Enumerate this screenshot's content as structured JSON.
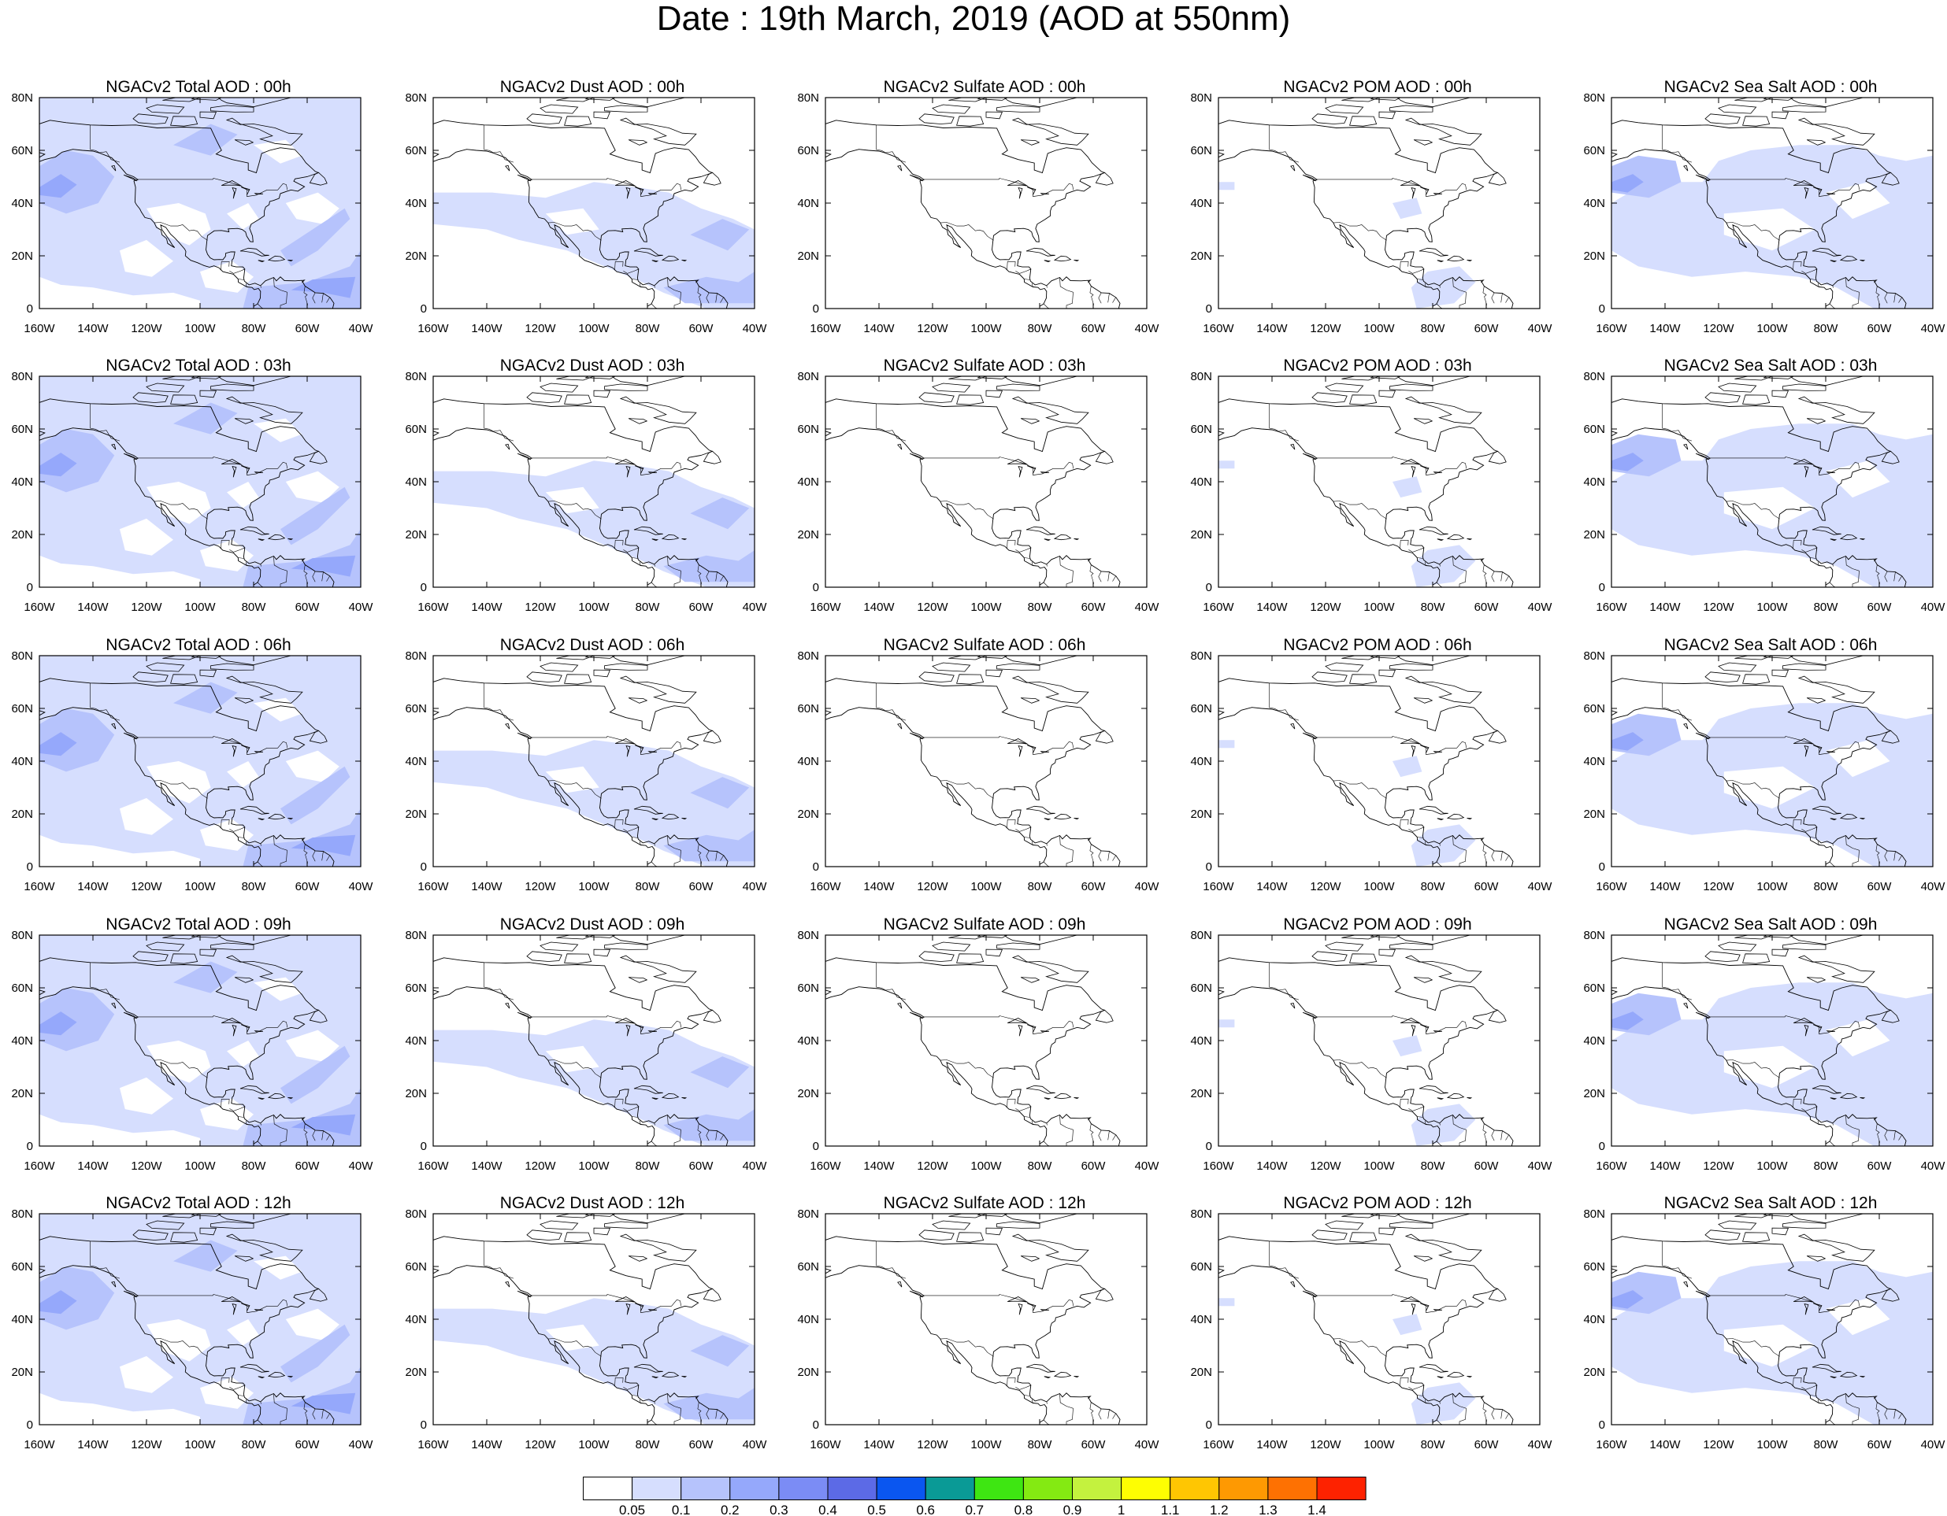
{
  "title": "Date : 19th March, 2019 (AOD at 550nm)",
  "x_tick_labels": [
    "160W",
    "140W",
    "120W",
    "100W",
    "80W",
    "60W",
    "40W"
  ],
  "y_tick_labels": [
    "0",
    "20N",
    "40N",
    "60N",
    "80N"
  ],
  "axes": {
    "lon_range": [
      -160,
      -40
    ],
    "lat_range": [
      0,
      80
    ]
  },
  "colors": {
    "levels": [
      "#ffffff",
      "#d6defe",
      "#b6c3fc",
      "#95a8fb",
      "#7b8cf5",
      "#5c6ae6",
      "#0a56f0",
      "#0a9a96",
      "#3ee612",
      "#84ea12",
      "#c4f23e",
      "#fefe02",
      "#ffc602",
      "#fe9902",
      "#fe7102",
      "#fe2200"
    ],
    "coastline": "#000000"
  },
  "colorbar": {
    "labels": [
      "0.05",
      "0.1",
      "0.2",
      "0.3",
      "0.4",
      "0.5",
      "0.6",
      "0.7",
      "0.8",
      "0.9",
      "1",
      "1.1",
      "1.2",
      "1.3",
      "1.4"
    ]
  },
  "panels": [
    {
      "title": "NGACv2 Total AOD : 00h",
      "species": "total",
      "hour": 0
    },
    {
      "title": "NGACv2 Dust AOD : 00h",
      "species": "dust",
      "hour": 0
    },
    {
      "title": "NGACv2 Sulfate AOD : 00h",
      "species": "sulfate",
      "hour": 0
    },
    {
      "title": "NGACv2 POM AOD : 00h",
      "species": "pom",
      "hour": 0
    },
    {
      "title": "NGACv2 Sea Salt AOD : 00h",
      "species": "seasalt",
      "hour": 0
    },
    {
      "title": "NGACv2 Total AOD : 03h",
      "species": "total",
      "hour": 3
    },
    {
      "title": "NGACv2 Dust AOD : 03h",
      "species": "dust",
      "hour": 3
    },
    {
      "title": "NGACv2 Sulfate AOD : 03h",
      "species": "sulfate",
      "hour": 3
    },
    {
      "title": "NGACv2 POM AOD : 03h",
      "species": "pom",
      "hour": 3
    },
    {
      "title": "NGACv2 Sea Salt AOD : 03h",
      "species": "seasalt",
      "hour": 3
    },
    {
      "title": "NGACv2 Total AOD : 06h",
      "species": "total",
      "hour": 6
    },
    {
      "title": "NGACv2 Dust AOD : 06h",
      "species": "dust",
      "hour": 6
    },
    {
      "title": "NGACv2 Sulfate AOD : 06h",
      "species": "sulfate",
      "hour": 6
    },
    {
      "title": "NGACv2 POM AOD : 06h",
      "species": "pom",
      "hour": 6
    },
    {
      "title": "NGACv2 Sea Salt AOD : 06h",
      "species": "seasalt",
      "hour": 6
    },
    {
      "title": "NGACv2 Total AOD : 09h",
      "species": "total",
      "hour": 9
    },
    {
      "title": "NGACv2 Dust AOD : 09h",
      "species": "dust",
      "hour": 9
    },
    {
      "title": "NGACv2 Sulfate AOD : 09h",
      "species": "sulfate",
      "hour": 9
    },
    {
      "title": "NGACv2 POM AOD : 09h",
      "species": "pom",
      "hour": 9
    },
    {
      "title": "NGACv2 Sea Salt  AOD : 09h",
      "species": "seasalt",
      "hour": 9
    },
    {
      "title": "NGACv2 Total AOD  : 12h",
      "species": "total",
      "hour": 12
    },
    {
      "title": "NGACv2 Dust AOD : 12h",
      "species": "dust",
      "hour": 12
    },
    {
      "title": "NGACv2 Sulfate AOD : 12h",
      "species": "sulfate",
      "hour": 12
    },
    {
      "title": "NGACv2 POM  AOD : 12h",
      "species": "pom",
      "hour": 12
    },
    {
      "title": "NGACv2 Sea Salt  AOD : 12h",
      "species": "seasalt",
      "hour": 12
    }
  ]
}
